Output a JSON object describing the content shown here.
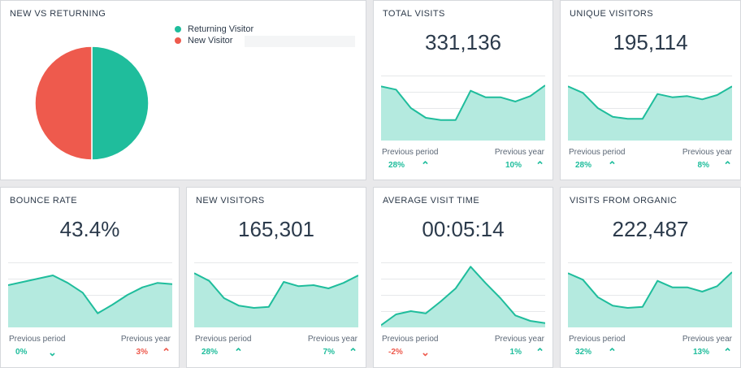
{
  "pie_card": {
    "title": "NEW VS RETURNING",
    "legend": [
      {
        "label": "Returning Visitor",
        "color": "#1fbd9c"
      },
      {
        "label": "New Visitor",
        "color": "#ee5a4d"
      }
    ],
    "chart_data": {
      "type": "pie",
      "categories": [
        "Returning Visitor",
        "New Visitor"
      ],
      "values": [
        50,
        50
      ],
      "colors": [
        "#1fbd9c",
        "#ee5a4d"
      ]
    }
  },
  "cards": [
    {
      "title": "TOTAL VISITS",
      "value": "331,136",
      "period_label": "Previous period",
      "period_pct": "28%",
      "period_dir": "up",
      "period_color": "up",
      "year_label": "Previous year",
      "year_pct": "10%",
      "year_dir": "up",
      "year_color": "up",
      "chart_data": {
        "type": "area",
        "values": [
          100,
          94,
          60,
          42,
          38,
          38,
          92,
          80,
          80,
          72,
          82,
          102
        ],
        "ylim": [
          0,
          120
        ]
      }
    },
    {
      "title": "UNIQUE VISITORS",
      "value": "195,114",
      "period_label": "Previous period",
      "period_pct": "28%",
      "period_dir": "up",
      "period_color": "up",
      "year_label": "Previous year",
      "year_pct": "8%",
      "year_dir": "up",
      "year_color": "up",
      "chart_data": {
        "type": "area",
        "values": [
          100,
          88,
          60,
          44,
          40,
          40,
          86,
          80,
          82,
          76,
          84,
          100
        ],
        "ylim": [
          0,
          120
        ]
      }
    },
    {
      "title": "BOUNCE RATE",
      "value": "43.4%",
      "period_label": "Previous period",
      "period_pct": "0%",
      "period_dir": "down",
      "period_color": "up",
      "year_label": "Previous year",
      "year_pct": "3%",
      "year_dir": "up",
      "year_color": "down",
      "chart_data": {
        "type": "area",
        "values": [
          78,
          84,
          90,
          96,
          82,
          64,
          26,
          42,
          60,
          74,
          82,
          80
        ],
        "ylim": [
          0,
          120
        ]
      }
    },
    {
      "title": "NEW VISITORS",
      "value": "165,301",
      "period_label": "Previous period",
      "period_pct": "28%",
      "period_dir": "up",
      "period_color": "up",
      "year_label": "Previous year",
      "year_pct": "7%",
      "year_dir": "up",
      "year_color": "up",
      "chart_data": {
        "type": "area",
        "values": [
          100,
          86,
          54,
          40,
          36,
          38,
          84,
          76,
          78,
          72,
          82,
          96
        ],
        "ylim": [
          0,
          120
        ]
      }
    },
    {
      "title": "AVERAGE VISIT TIME",
      "value": "00:05:14",
      "period_label": "Previous period",
      "period_pct": "-2%",
      "period_dir": "down",
      "period_color": "down",
      "year_label": "Previous year",
      "year_pct": "1%",
      "year_dir": "up",
      "year_color": "up",
      "chart_data": {
        "type": "area",
        "values": [
          4,
          24,
          30,
          26,
          48,
          72,
          112,
          82,
          54,
          22,
          12,
          8
        ],
        "ylim": [
          0,
          120
        ]
      }
    },
    {
      "title": "VISITS FROM ORGANIC",
      "value": "222,487",
      "period_label": "Previous period",
      "period_pct": "32%",
      "period_dir": "up",
      "period_color": "up",
      "year_label": "Previous year",
      "year_pct": "13%",
      "year_dir": "up",
      "year_color": "up",
      "chart_data": {
        "type": "area",
        "values": [
          100,
          88,
          56,
          40,
          36,
          38,
          86,
          74,
          74,
          66,
          76,
          102
        ],
        "ylim": [
          0,
          120
        ]
      }
    }
  ]
}
